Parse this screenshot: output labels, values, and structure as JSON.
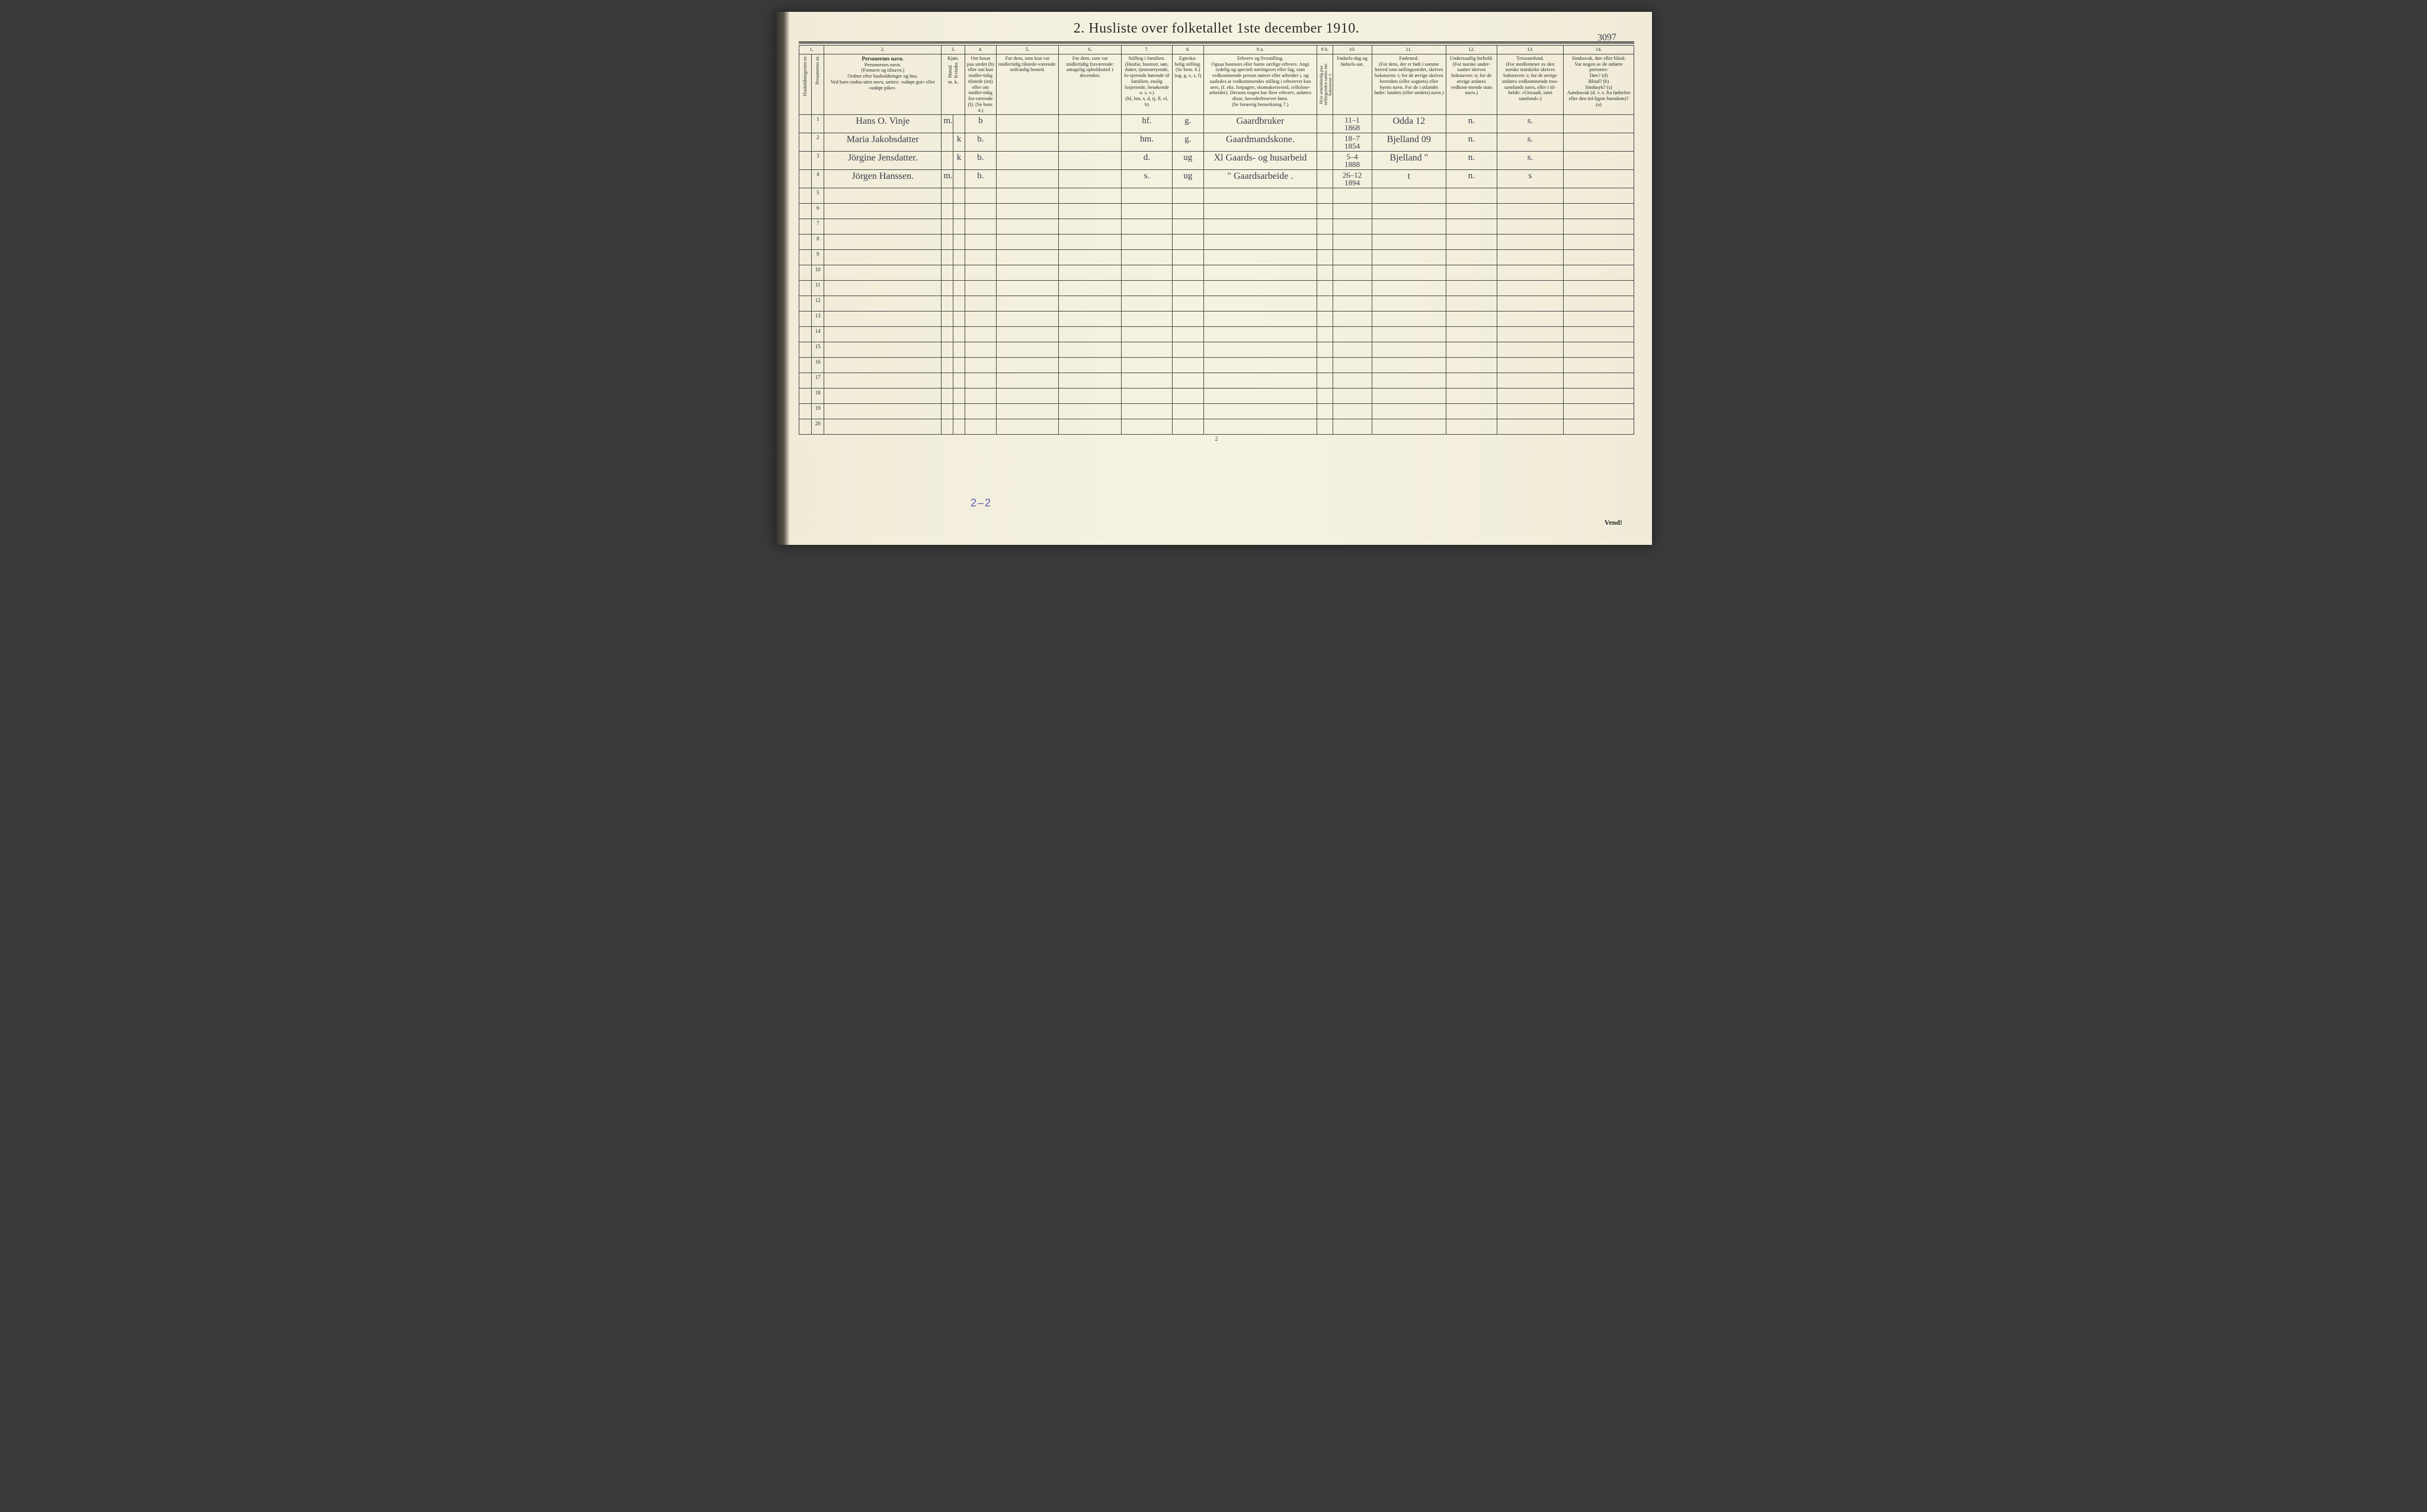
{
  "title": "2.  Husliste over folketallet 1ste december 1910.",
  "page_code_handwritten": "3097",
  "col_numbers": [
    "1.",
    "2.",
    "3.",
    "4.",
    "5.",
    "6.",
    "7.",
    "8.",
    "9 a.",
    "9 b.",
    "10.",
    "11.",
    "12.",
    "13.",
    "14."
  ],
  "headers": {
    "c1a": "Husholdningernes nr.",
    "c1b": "Personernes nr.",
    "c2": "Personernes navn.\n(Fornavn og tilnavn.)\nOrdnet efter husholdninger og hus.\nVed barn endnu uten navn, sættes: «udøpt gut» eller «udøpt pike».",
    "c3": "Kjøn.",
    "c3a": "Mænd.",
    "c3b": "Kvinder.",
    "c3sub": "m.  k.",
    "c4": "Om bosat paa stedet (b) eller om kun midler-tidig tilstede (mt) eller om midler-tidig fra-værende (f). (Se bem. 4.)",
    "c5": "For dem, som kun var midlertidig tilstede-værende:\nsedvanlig bosted.",
    "c6": "For dem, som var midlertidig fraværende:\nantagelig opholdssted 1 december.",
    "c7": "Stilling i familien.\n(Husfar, husmor, søn, datter, tjenestetyende, lo-sjerende hørende til familien, enslig losjerende, besøkende o. s. v.)\n(hf, hm, s, d, tj, fl, el, b)",
    "c8": "Egteska-belig stilling.\n(Se bem. 6.)\n(ug, g, e, s, f)",
    "c9a": "Erhverv og livsstilling.\nOgsaa husmors eller barns særlige erhverv. Angi tydelig og specielt næringsvei eller fag, som vedkommende person utøver eller arbeider i, og saaledes at vedkommendes stilling i erhvervet kan sees, (f. eks. forpagter, skomakersvend, cellulose-arbeider). Dersom nogen har flere erhverv, anføres disse, hovederhvervet først.\n(Se forøvrig bemerkning 7.)",
    "c9b": "Hvis arbeidsledig paa tællingstiden sættes her bokstaven: l.",
    "c10": "Fødsels-dag og fødsels-aar.",
    "c11": "Fødested.\n(For dem, der er født i samme herred som tællingsstedet, skrives bokstaven: t; for de øvrige skrives herredets (eller sognets) eller byens navn. For de i utlandet fødte: landets (eller stedets) navn.)",
    "c12": "Undersaatlig forhold.\n(For norske under-saatter skrives bokstaven: n; for de øvrige anføres vedkom-mende stats navn.)",
    "c13": "Trossamfund.\n(For medlemmer av den norske statskirke skrives bokstaven: s; for de øvrige anføres vedkommende tros-samfunds navn, eller i til-fælde: «Uttraadt, intet samfund».)",
    "c14": "Sindssvak, døv eller blind.\nVar nogen av de anførte personer:\nDøv?      (d)\nBlind?    (b)\nSindssyk? (s)\nAandssvak (d. v. s. fra fødselen eller den tid-ligste barndom)?  (a)"
  },
  "rows": [
    {
      "n": "1",
      "name": "Hans O. Vinje",
      "mk": "m.",
      "b": "b",
      "c7": "hf.",
      "c8": "g.",
      "c9": "Gaardbruker",
      "c10": "11–1\n1868",
      "c11": "Odda 12",
      "c12": "n.",
      "c13": "s."
    },
    {
      "n": "2",
      "name": "Maria Jakobsdatter",
      "mk": "k",
      "b": "b.",
      "c7": "hm.",
      "c8": "g.",
      "c9": "Gaardmandskone.",
      "c10": "18–7\n1854",
      "c11": "Bjelland 09",
      "c12": "n.",
      "c13": "s."
    },
    {
      "n": "3",
      "name": "Jörgine Jensdatter.",
      "mk": "k",
      "b": "b.",
      "c7": "d.",
      "c8": "ug",
      "c9": "Xl Gaards- og husarbeid",
      "c10": "5–4\n1888",
      "c11": "Bjelland  \"",
      "c12": "n.",
      "c13": "s."
    },
    {
      "n": "4",
      "name": "Jörgen Hanssen.",
      "mk": "m.",
      "b": "b.",
      "c7": "s.",
      "c8": "ug",
      "c9": "\" Gaardsarbeide .",
      "c10": "26–12\n1894",
      "c11": "t",
      "c12": "n.",
      "c13": "s"
    }
  ],
  "blank_row_numbers": [
    "5",
    "6",
    "7",
    "8",
    "9",
    "10",
    "11",
    "12",
    "13",
    "14",
    "15",
    "16",
    "17",
    "18",
    "19",
    "20"
  ],
  "footer_tally": "2–2",
  "page_number_bottom": "2",
  "vend": "Vend!",
  "colors": {
    "paper": "#f4f0de",
    "ink": "#2a2a2a",
    "handwriting": "#3a3a4a",
    "pencil_blue": "#5a5ab0",
    "border": "#444444"
  },
  "col_widths_pct": [
    1.8,
    1.8,
    15,
    1.6,
    1.6,
    3.8,
    8,
    8,
    6.5,
    4.2,
    14,
    2.2,
    5.5,
    10,
    7,
    9,
    9
  ]
}
